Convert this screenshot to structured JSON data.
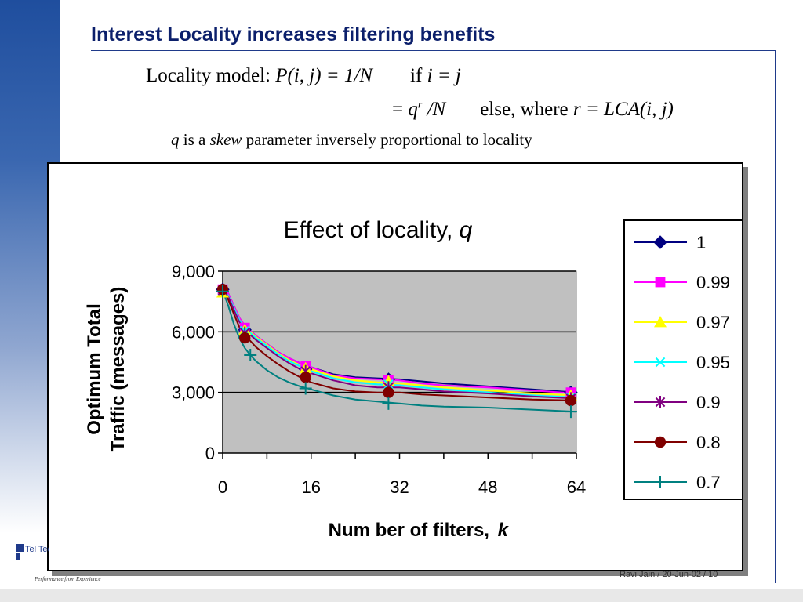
{
  "slide": {
    "title": "Interest Locality increases filtering benefits",
    "formula_line1_prefix": "Locality model: ",
    "formula_line1_expr": "P(i, j) = 1/N",
    "formula_line1_if": "if ",
    "formula_line1_cond": "i = j",
    "formula_line2_eq": "= ",
    "formula_line2_q": "q",
    "formula_line2_exp": "r",
    "formula_line2_over": " /N",
    "formula_line2_else": "else, where ",
    "formula_line2_cond": "r = LCA(i, j)",
    "formula_line3_q": "q",
    "formula_line3_is": " is a ",
    "formula_line3_skew": "skew",
    "formula_line3_rest": " parameter inversely proportional to locality",
    "footer_author": "Ravi Jain / 20-Jun-02 / 10",
    "footer_tagline": "Performance from Experience",
    "footer_logo_text": "Tel Tec"
  },
  "colors": {
    "title": "#0b1f6b",
    "plot_bg": "#c0c0c0",
    "left_bar": "#1f4e9e"
  },
  "chart_data": {
    "type": "line",
    "title": "Effect of locality, ",
    "title_var": "q",
    "xlabel": "Num ber of filters, ",
    "xlabel_var": "k",
    "ylabel_line1": "Optimum Total",
    "ylabel_line2": "Traffic (messages)",
    "xlim": [
      0,
      64
    ],
    "ylim": [
      0,
      9000
    ],
    "xticks": [
      "0",
      "16",
      "32",
      "48",
      "64"
    ],
    "xtick_values": [
      0,
      16,
      32,
      48,
      64
    ],
    "yticks": [
      "0",
      "3,000",
      "6,000",
      "9,000"
    ],
    "ytick_values": [
      0,
      3000,
      6000,
      9000
    ],
    "grid": "horizontal",
    "legend_position": "right",
    "series": [
      {
        "name": "1",
        "color": "#000080",
        "marker": "diamond",
        "x": [
          0,
          1,
          2,
          3,
          4,
          5,
          6,
          8,
          10,
          12,
          14,
          16,
          20,
          24,
          28,
          32,
          36,
          40,
          48,
          56,
          64
        ],
        "y": [
          8150,
          7900,
          7300,
          6700,
          6300,
          6050,
          5800,
          5400,
          5000,
          4700,
          4450,
          4250,
          3900,
          3750,
          3700,
          3650,
          3550,
          3450,
          3300,
          3150,
          3000
        ],
        "marker_x": [
          0,
          4,
          15,
          30,
          63
        ],
        "marker_y": [
          8100,
          6100,
          4150,
          3650,
          3000
        ]
      },
      {
        "name": "0.99",
        "color": "#ff00ff",
        "marker": "square",
        "x": [
          0,
          1,
          2,
          3,
          4,
          5,
          6,
          8,
          10,
          12,
          14,
          16,
          20,
          24,
          28,
          32,
          36,
          40,
          48,
          56,
          64
        ],
        "y": [
          8150,
          7900,
          7300,
          6700,
          6300,
          6050,
          5800,
          5400,
          5000,
          4700,
          4450,
          4250,
          3850,
          3700,
          3650,
          3600,
          3450,
          3350,
          3250,
          3100,
          2950
        ],
        "marker_x": [
          0,
          4,
          15,
          30,
          63
        ],
        "marker_y": [
          8100,
          6200,
          4300,
          3600,
          3000
        ]
      },
      {
        "name": "0.97",
        "color": "#ffff00",
        "marker": "triangle",
        "x": [
          0,
          1,
          2,
          3,
          4,
          5,
          6,
          8,
          10,
          12,
          14,
          16,
          20,
          24,
          28,
          32,
          36,
          40,
          48,
          56,
          64
        ],
        "y": [
          8000,
          7800,
          7200,
          6600,
          6250,
          6000,
          5750,
          5350,
          4950,
          4600,
          4350,
          4150,
          3800,
          3600,
          3500,
          3450,
          3350,
          3250,
          3100,
          2950,
          2850
        ],
        "marker_x": [
          0,
          4,
          15,
          30,
          63
        ],
        "marker_y": [
          7950,
          6100,
          4200,
          3550,
          2850
        ]
      },
      {
        "name": "0.95",
        "color": "#00ffff",
        "marker": "x",
        "x": [
          0,
          1,
          2,
          3,
          4,
          5,
          6,
          8,
          10,
          12,
          14,
          16,
          20,
          24,
          28,
          32,
          36,
          40,
          48,
          56,
          64
        ],
        "y": [
          8050,
          7800,
          7200,
          6600,
          6200,
          5950,
          5700,
          5300,
          4900,
          4550,
          4300,
          4050,
          3700,
          3500,
          3400,
          3350,
          3250,
          3150,
          3000,
          2850,
          2750
        ],
        "marker_x": [
          0,
          4,
          15,
          30,
          63
        ],
        "marker_y": [
          8050,
          6050,
          4050,
          3400,
          2750
        ]
      },
      {
        "name": "0.9",
        "color": "#800080",
        "marker": "asterisk",
        "x": [
          0,
          1,
          2,
          3,
          4,
          5,
          6,
          8,
          10,
          12,
          14,
          16,
          20,
          24,
          28,
          32,
          36,
          40,
          48,
          56,
          64
        ],
        "y": [
          8050,
          7750,
          7100,
          6500,
          6100,
          5850,
          5600,
          5200,
          4800,
          4450,
          4150,
          3950,
          3600,
          3350,
          3250,
          3250,
          3150,
          3050,
          2950,
          2800,
          2700
        ],
        "marker_x": [
          0,
          4,
          15,
          30,
          63
        ],
        "marker_y": [
          8050,
          5950,
          4050,
          3250,
          2700
        ]
      },
      {
        "name": "0.8",
        "color": "#800000",
        "marker": "circle",
        "x": [
          0,
          1,
          2,
          3,
          4,
          5,
          6,
          8,
          10,
          12,
          14,
          16,
          20,
          24,
          28,
          32,
          36,
          40,
          48,
          56,
          64
        ],
        "y": [
          8050,
          7600,
          6900,
          6250,
          5800,
          5550,
          5250,
          4800,
          4400,
          4050,
          3750,
          3500,
          3200,
          3050,
          3000,
          3000,
          2900,
          2850,
          2750,
          2650,
          2600
        ],
        "marker_x": [
          0,
          4,
          15,
          30,
          63
        ],
        "marker_y": [
          8100,
          5700,
          3750,
          3000,
          2600
        ]
      },
      {
        "name": "0.7",
        "color": "#008080",
        "marker": "plus",
        "x": [
          0,
          1,
          2,
          3,
          4,
          5,
          6,
          8,
          10,
          12,
          14,
          16,
          20,
          24,
          28,
          32,
          36,
          40,
          48,
          56,
          64
        ],
        "y": [
          8050,
          7300,
          6400,
          5700,
          5200,
          4850,
          4550,
          4100,
          3750,
          3500,
          3300,
          3150,
          2850,
          2650,
          2550,
          2450,
          2350,
          2300,
          2250,
          2150,
          2050
        ],
        "marker_x": [
          0,
          5,
          15,
          30,
          63
        ],
        "marker_y": [
          8000,
          4850,
          3200,
          2450,
          2050
        ]
      }
    ]
  }
}
